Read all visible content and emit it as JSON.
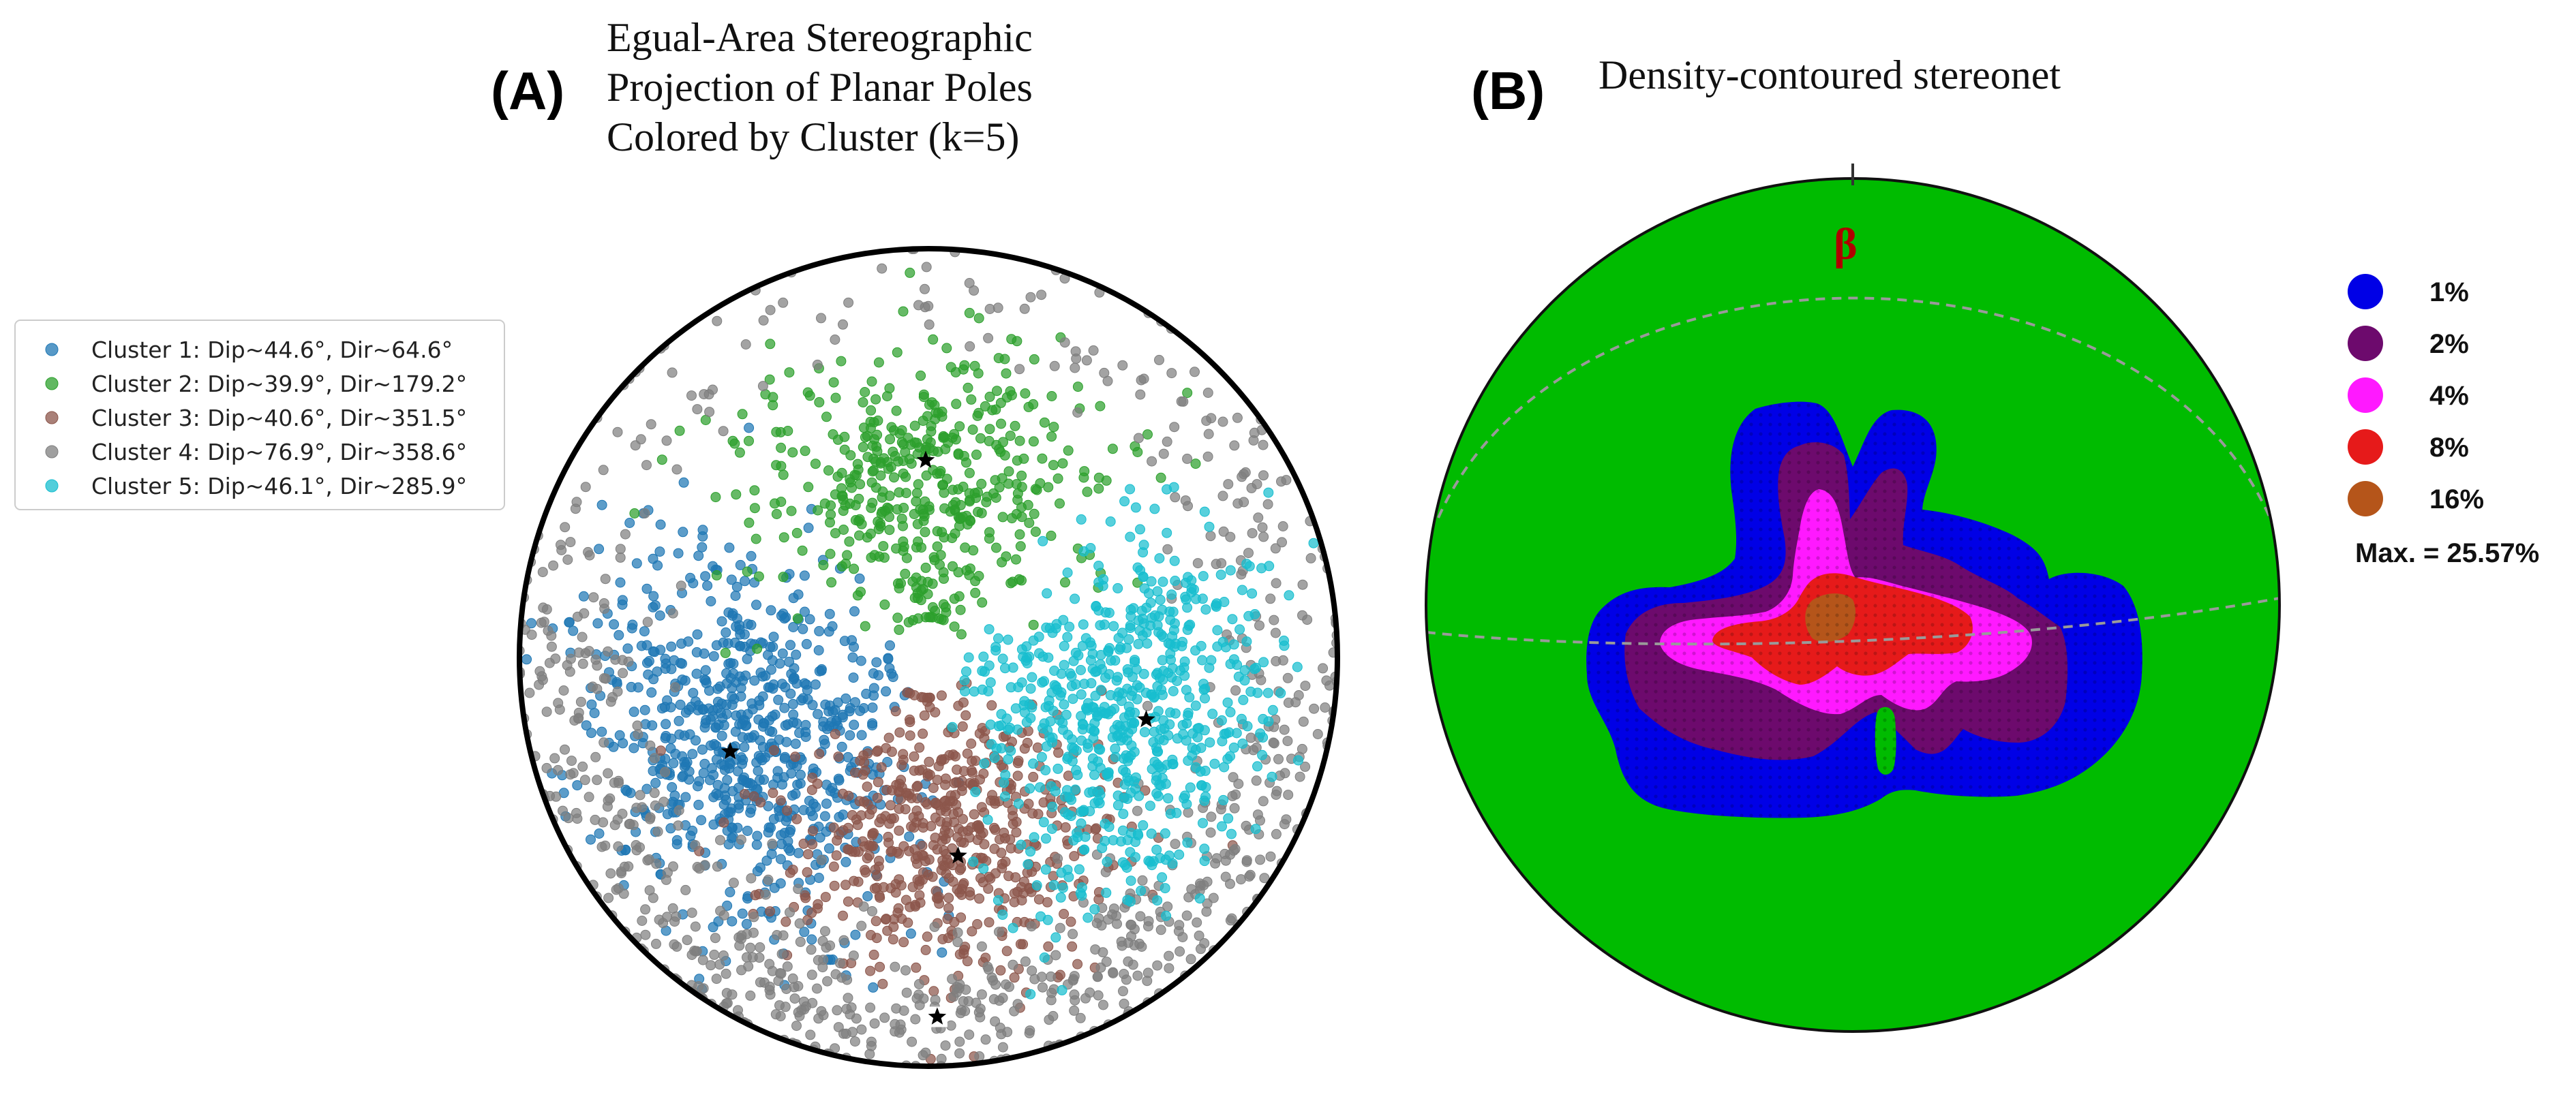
{
  "chart_data": [
    {
      "type": "scatter",
      "panel_label": "(A)",
      "title": [
        "Egual-Area Stereographic",
        "Projection of Planar Poles",
        "Colored by Cluster (k=5)"
      ],
      "projection": "equal-area stereonet (lower hemisphere)",
      "marker_centroid": "star",
      "legend_position": "left",
      "series": [
        {
          "name": "Cluster 1: Dip~44.6°, Dir~64.6°",
          "color": "#1f77b4",
          "centroid": {
            "dip": 44.6,
            "dir": 64.6
          }
        },
        {
          "name": "Cluster 2: Dip~39.9°, Dir~179.2°",
          "color": "#2ca02c",
          "centroid": {
            "dip": 39.9,
            "dir": 179.2
          }
        },
        {
          "name": "Cluster 3: Dip~40.6°, Dir~351.5°",
          "color": "#8c564b",
          "centroid": {
            "dip": 40.6,
            "dir": 351.5
          }
        },
        {
          "name": "Cluster 4: Dip~76.9°, Dir~358.6°",
          "color": "#7f7f7f",
          "centroid": {
            "dip": 76.9,
            "dir": 358.6
          }
        },
        {
          "name": "Cluster 5: Dip~46.1°, Dir~285.9°",
          "color": "#17becf",
          "centroid": {
            "dip": 46.1,
            "dir": 285.9
          }
        }
      ]
    },
    {
      "type": "heatmap",
      "panel_label": "(B)",
      "title": "Density-contoured stereonet",
      "annotation": "β",
      "legend_position": "right",
      "contour_levels": [
        {
          "label": "1%",
          "value": 1,
          "color": "#0000e6"
        },
        {
          "label": "2%",
          "value": 2,
          "color": "#6d0a6d"
        },
        {
          "label": "4%",
          "value": 4,
          "color": "#ff19ff"
        },
        {
          "label": "8%",
          "value": 8,
          "color": "#e61a1a"
        },
        {
          "label": "16%",
          "value": 16,
          "color": "#b5551a"
        }
      ],
      "background_color": "#00bb00",
      "max_label": "Max. = 25.57%",
      "max_value": 25.57
    }
  ]
}
